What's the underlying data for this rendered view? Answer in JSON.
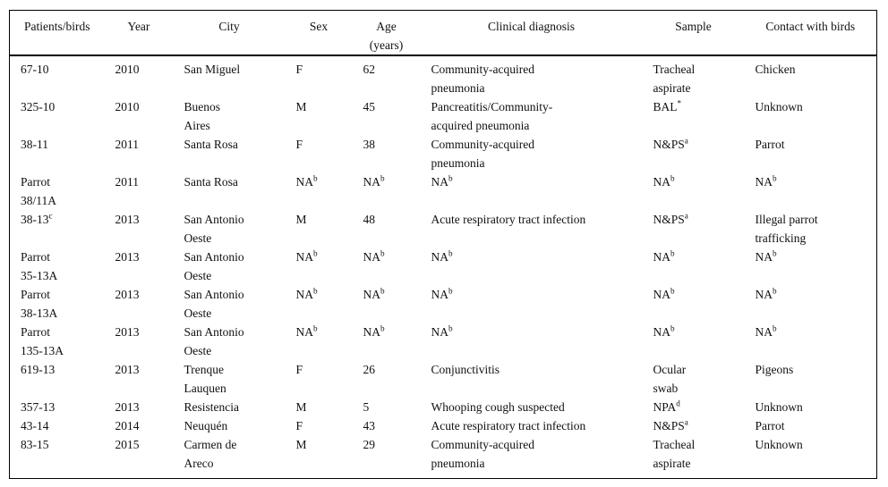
{
  "page": {
    "background_color": "#ffffff",
    "text_color": "#111111",
    "rule_color": "#000000"
  },
  "table": {
    "columns": [
      {
        "key": "patient",
        "label": "Patients/birds"
      },
      {
        "key": "year",
        "label": "Year"
      },
      {
        "key": "city",
        "label": "City"
      },
      {
        "key": "sex",
        "label": "Sex"
      },
      {
        "key": "age",
        "label": "Age\n(years)"
      },
      {
        "key": "diagnosis",
        "label": "Clinical diagnosis"
      },
      {
        "key": "sample",
        "label": "Sample"
      },
      {
        "key": "contact",
        "label": "Contact with birds"
      }
    ],
    "rows": [
      [
        "67-10",
        "2010",
        "San Miguel",
        "F",
        "62",
        "Community-acquired\npneumonia",
        "Tracheal\naspirate",
        "Chicken"
      ],
      [
        "325-10",
        "2010",
        "Buenos\nAires",
        "M",
        "45",
        "Pancreatitis/Community-\nacquired pneumonia",
        "BAL^*",
        "Unknown"
      ],
      [
        "38-11",
        "2011",
        "Santa Rosa",
        "F",
        "38",
        "Community-acquired\npneumonia",
        "N&PS^a",
        "Parrot"
      ],
      [
        "Parrot\n38/11A",
        "2011",
        "Santa Rosa",
        "NA^b",
        "NA^b",
        "NA^b",
        "NA^b",
        "NA^b"
      ],
      [
        "38-13^c",
        "2013",
        "San Antonio\nOeste",
        "M",
        "48",
        "Acute respiratory tract infection",
        "N&PS^a",
        "Illegal parrot\ntrafficking"
      ],
      [
        "Parrot\n35-13A",
        "2013",
        "San Antonio\nOeste",
        "NA^b",
        "NA^b",
        "NA^b",
        "NA^b",
        "NA^b"
      ],
      [
        "Parrot\n38-13A",
        "2013",
        "San Antonio\nOeste",
        "NA^b",
        "NA^b",
        "NA^b",
        "NA^b",
        "NA^b"
      ],
      [
        "Parrot\n135-13A",
        "2013",
        "San Antonio\nOeste",
        "NA^b",
        "NA^b",
        "NA^b",
        "NA^b",
        "NA^b"
      ],
      [
        "619-13",
        "2013",
        "Trenque\nLauquen",
        "F",
        "26",
        "Conjunctivitis",
        "Ocular\nswab",
        "Pigeons"
      ],
      [
        "357-13",
        "2013",
        "Resistencia",
        "M",
        "5",
        "Whooping cough suspected",
        "NPA^d",
        "Unknown"
      ],
      [
        "43-14",
        "2014",
        "Neuquén",
        "F",
        "43",
        "Acute respiratory tract infection",
        "N&PS^a",
        "Parrot"
      ],
      [
        "83-15",
        "2015",
        "Carmen de\nAreco",
        "M",
        "29",
        "Community-acquired\npneumonia",
        "Tracheal\naspirate",
        "Unknown"
      ]
    ]
  }
}
